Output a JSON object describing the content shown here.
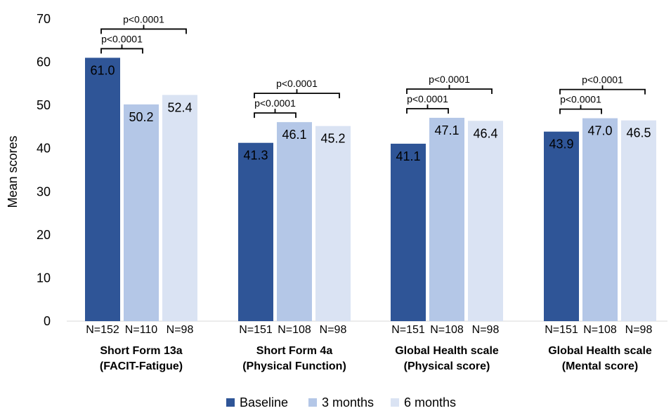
{
  "chart_data": {
    "type": "bar",
    "ylabel": "Mean scores",
    "ylim": [
      0,
      70
    ],
    "yticks": [
      0,
      10,
      20,
      30,
      40,
      50,
      60,
      70
    ],
    "colors": [
      "#2f5597",
      "#b4c7e7",
      "#dae3f3"
    ],
    "legend": {
      "position": "bottom",
      "entries": [
        "Baseline",
        "3 months",
        "6 months"
      ]
    },
    "series": [
      {
        "name": "Baseline",
        "values": [
          61.0,
          41.3,
          41.1,
          43.9
        ]
      },
      {
        "name": "3 months",
        "values": [
          50.2,
          46.1,
          47.1,
          47.0
        ]
      },
      {
        "name": "6 months",
        "values": [
          52.4,
          45.2,
          46.4,
          46.5
        ]
      }
    ],
    "data_labels": [
      [
        "61.0",
        "50.2",
        "52.4"
      ],
      [
        "41.3",
        "46.1",
        "45.2"
      ],
      [
        "41.1",
        "47.1",
        "46.4"
      ],
      [
        "43.9",
        "47.0",
        "46.5"
      ]
    ],
    "groups": [
      {
        "line1": "Short Form 13a",
        "line2": "(FACIT-Fatigue)",
        "n": [
          "N=152",
          "N=110",
          "N=98"
        ],
        "pvalues": {
          "short": "p<0.0001",
          "long": "p<0.0001"
        }
      },
      {
        "line1": "Short Form 4a",
        "line2": "(Physical Function)",
        "n": [
          "N=151",
          "N=108",
          "N=98"
        ],
        "pvalues": {
          "short": "p<0.0001",
          "long": "p<0.0001"
        }
      },
      {
        "line1": "Global Health scale",
        "line2": "(Physical score)",
        "n": [
          "N=151",
          "N=108",
          "N=98"
        ],
        "pvalues": {
          "short": "p<0.0001",
          "long": "p<0.0001"
        }
      },
      {
        "line1": "Global Health scale",
        "line2": "(Mental score)",
        "n": [
          "N=151",
          "N=108",
          "N=98"
        ],
        "pvalues": {
          "short": "p<0.0001",
          "long": "p<0.0001"
        }
      }
    ]
  }
}
